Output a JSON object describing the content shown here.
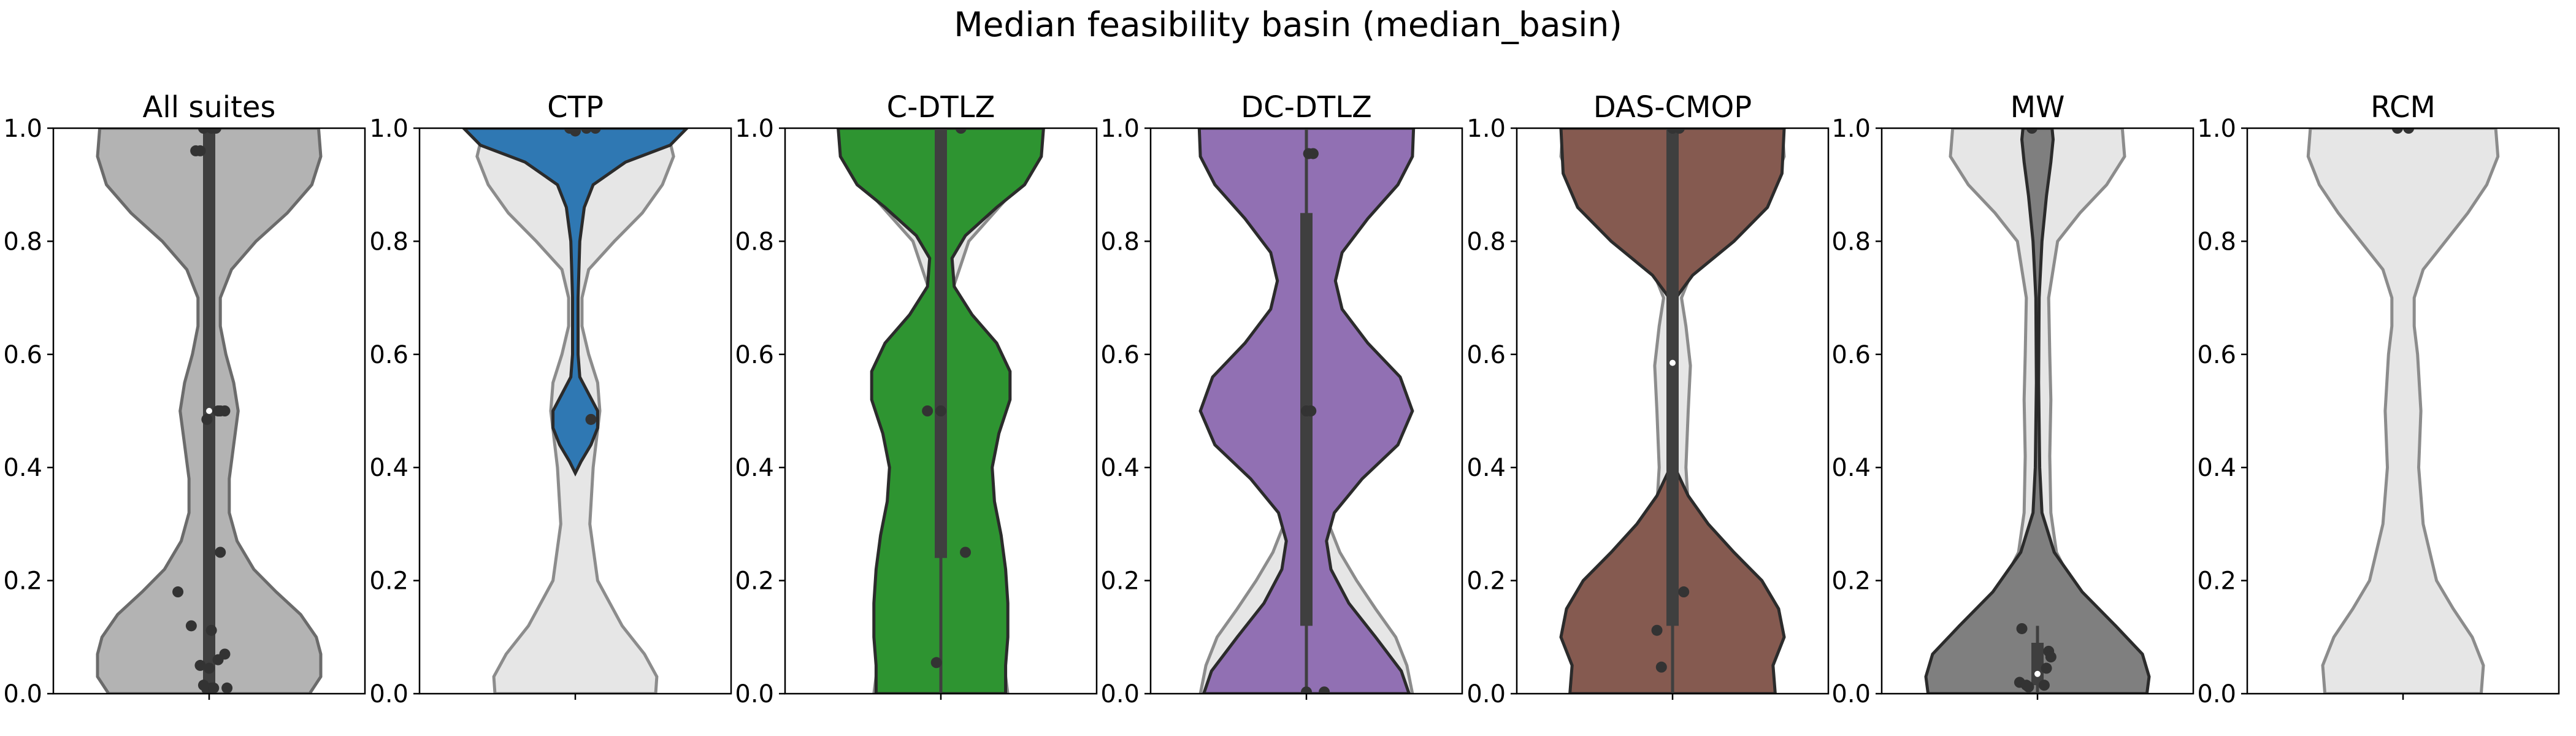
{
  "figure": {
    "title": "Median feasibility basin (median_basin)"
  },
  "style": {
    "ghost_fill": "#e6e6e6",
    "ghost_stroke": "#8c8c8c",
    "box_color": "#3f3f3f",
    "point_color": "#333333",
    "median_color": "#ffffff"
  },
  "y_ticks": [
    "0.0",
    "0.2",
    "0.4",
    "0.6",
    "0.8",
    "1.0"
  ],
  "chart_data": [
    {
      "type": "violin",
      "title": "All suites",
      "ylim": [
        0,
        1
      ],
      "yticks": [
        0,
        0.2,
        0.4,
        0.6,
        0.8,
        1.0
      ],
      "color": "#b3b3b3",
      "stroke": "#6b6b6b",
      "density": [
        [
          0,
          0.9
        ],
        [
          0.03,
          1.0
        ],
        [
          0.07,
          1.0
        ],
        [
          0.1,
          0.96
        ],
        [
          0.14,
          0.82
        ],
        [
          0.18,
          0.6
        ],
        [
          0.22,
          0.4
        ],
        [
          0.27,
          0.25
        ],
        [
          0.32,
          0.18
        ],
        [
          0.38,
          0.18
        ],
        [
          0.44,
          0.22
        ],
        [
          0.5,
          0.26
        ],
        [
          0.55,
          0.22
        ],
        [
          0.6,
          0.15
        ],
        [
          0.65,
          0.1
        ],
        [
          0.7,
          0.1
        ],
        [
          0.75,
          0.2
        ],
        [
          0.8,
          0.42
        ],
        [
          0.85,
          0.7
        ],
        [
          0.9,
          0.92
        ],
        [
          0.95,
          1.0
        ],
        [
          1.0,
          0.98
        ]
      ],
      "box": {
        "q1": 0.0,
        "median": 0.5,
        "q3": 1.0,
        "whisker_low": 0.0,
        "whisker_high": 1.0
      },
      "points": [
        [
          -0.05,
          1.0
        ],
        [
          0.02,
          1.0
        ],
        [
          0.06,
          1.0
        ],
        [
          -0.12,
          0.96
        ],
        [
          -0.08,
          0.96
        ],
        [
          -0.02,
          0.485
        ],
        [
          0.08,
          0.5
        ],
        [
          0.14,
          0.5
        ],
        [
          0.1,
          0.5
        ],
        [
          0.1,
          0.25
        ],
        [
          -0.28,
          0.18
        ],
        [
          -0.16,
          0.12
        ],
        [
          0.02,
          0.112
        ],
        [
          0.14,
          0.07
        ],
        [
          0.08,
          0.06
        ],
        [
          -0.08,
          0.05
        ],
        [
          0.0,
          0.045
        ],
        [
          -0.05,
          0.015
        ],
        [
          0.02,
          0.01
        ],
        [
          0.16,
          0.01
        ],
        [
          -0.02,
          0.008
        ],
        [
          0.04,
          0.01
        ]
      ],
      "ghost": null
    },
    {
      "type": "violin",
      "title": "CTP",
      "ylim": [
        0,
        1
      ],
      "yticks": [
        0,
        0.2,
        0.4,
        0.6,
        0.8,
        1.0
      ],
      "color": "#2f78b3",
      "stroke": "#2b2b2b",
      "density": [
        [
          0.39,
          0.0
        ],
        [
          0.41,
          0.05
        ],
        [
          0.44,
          0.14
        ],
        [
          0.47,
          0.2
        ],
        [
          0.5,
          0.2
        ],
        [
          0.53,
          0.12
        ],
        [
          0.56,
          0.04
        ],
        [
          0.6,
          0.025
        ],
        [
          0.7,
          0.025
        ],
        [
          0.8,
          0.04
        ],
        [
          0.86,
          0.08
        ],
        [
          0.9,
          0.16
        ],
        [
          0.94,
          0.45
        ],
        [
          0.97,
          0.85
        ],
        [
          1.0,
          1.0
        ]
      ],
      "box": {
        "q1": 1.0,
        "median": 1.0,
        "q3": 1.0,
        "whisker_low": 1.0,
        "whisker_high": 1.0
      },
      "points": [
        [
          -0.05,
          1.0
        ],
        [
          0.1,
          1.0
        ],
        [
          0.18,
          1.0
        ],
        [
          0.0,
          0.995
        ],
        [
          0.14,
          0.485
        ]
      ],
      "ghost": [
        [
          0,
          0.72
        ],
        [
          0.03,
          0.73
        ],
        [
          0.07,
          0.62
        ],
        [
          0.12,
          0.42
        ],
        [
          0.2,
          0.2
        ],
        [
          0.3,
          0.13
        ],
        [
          0.4,
          0.16
        ],
        [
          0.5,
          0.22
        ],
        [
          0.55,
          0.2
        ],
        [
          0.6,
          0.12
        ],
        [
          0.65,
          0.06
        ],
        [
          0.7,
          0.06
        ],
        [
          0.75,
          0.12
        ],
        [
          0.8,
          0.35
        ],
        [
          0.85,
          0.6
        ],
        [
          0.9,
          0.78
        ],
        [
          0.95,
          0.88
        ],
        [
          1.0,
          0.82
        ]
      ]
    },
    {
      "type": "violin",
      "title": "C-DTLZ",
      "ylim": [
        0,
        1
      ],
      "yticks": [
        0,
        0.2,
        0.4,
        0.6,
        0.8,
        1.0
      ],
      "color": "#2e9431",
      "stroke": "#2b2b2b",
      "density": [
        [
          0,
          0.58
        ],
        [
          0.05,
          0.58
        ],
        [
          0.1,
          0.6
        ],
        [
          0.16,
          0.6
        ],
        [
          0.22,
          0.58
        ],
        [
          0.28,
          0.54
        ],
        [
          0.34,
          0.48
        ],
        [
          0.4,
          0.46
        ],
        [
          0.46,
          0.52
        ],
        [
          0.52,
          0.62
        ],
        [
          0.57,
          0.62
        ],
        [
          0.62,
          0.5
        ],
        [
          0.67,
          0.28
        ],
        [
          0.72,
          0.12
        ],
        [
          0.77,
          0.1
        ],
        [
          0.81,
          0.22
        ],
        [
          0.86,
          0.5
        ],
        [
          0.9,
          0.75
        ],
        [
          0.95,
          0.9
        ],
        [
          1.0,
          0.92
        ]
      ],
      "box": {
        "q1": 0.24,
        "median": 0.5,
        "q3": 1.0,
        "whisker_low": 0.0,
        "whisker_high": 1.0
      },
      "points": [
        [
          -0.12,
          0.5
        ],
        [
          0.0,
          0.5
        ],
        [
          0.18,
          1.0
        ],
        [
          0.22,
          0.25
        ],
        [
          -0.04,
          0.055
        ]
      ],
      "ghost": [
        [
          0,
          0.6
        ],
        [
          0.03,
          0.58
        ],
        [
          0.06,
          0.45
        ],
        [
          0.1,
          0.3
        ],
        [
          0.2,
          0.14
        ],
        [
          0.3,
          0.12
        ],
        [
          0.4,
          0.14
        ],
        [
          0.5,
          0.15
        ],
        [
          0.6,
          0.12
        ],
        [
          0.7,
          0.08
        ],
        [
          0.8,
          0.25
        ],
        [
          0.9,
          0.7
        ],
        [
          1.0,
          0.92
        ]
      ]
    },
    {
      "type": "violin",
      "title": "DC-DTLZ",
      "ylim": [
        0,
        1
      ],
      "yticks": [
        0,
        0.2,
        0.4,
        0.6,
        0.8,
        1.0
      ],
      "color": "#9170b3",
      "stroke": "#2b2b2b",
      "density": [
        [
          0,
          0.92
        ],
        [
          0.04,
          0.85
        ],
        [
          0.1,
          0.62
        ],
        [
          0.16,
          0.38
        ],
        [
          0.22,
          0.22
        ],
        [
          0.27,
          0.18
        ],
        [
          0.32,
          0.25
        ],
        [
          0.38,
          0.5
        ],
        [
          0.44,
          0.82
        ],
        [
          0.5,
          0.95
        ],
        [
          0.56,
          0.84
        ],
        [
          0.62,
          0.55
        ],
        [
          0.68,
          0.32
        ],
        [
          0.73,
          0.26
        ],
        [
          0.78,
          0.32
        ],
        [
          0.84,
          0.55
        ],
        [
          0.9,
          0.82
        ],
        [
          0.95,
          0.95
        ],
        [
          1.0,
          0.96
        ]
      ],
      "box": {
        "q1": 0.12,
        "median": 0.5,
        "q3": 0.85,
        "whisker_low": 0.0,
        "whisker_high": 1.0
      },
      "points": [
        [
          0.0,
          0.5
        ],
        [
          0.04,
          0.5
        ],
        [
          0.02,
          0.955
        ],
        [
          0.06,
          0.955
        ],
        [
          0.0,
          0.003
        ],
        [
          0.16,
          0.003
        ]
      ],
      "ghost": [
        [
          0,
          0.95
        ],
        [
          0.05,
          0.9
        ],
        [
          0.1,
          0.8
        ],
        [
          0.15,
          0.62
        ],
        [
          0.2,
          0.45
        ],
        [
          0.25,
          0.3
        ],
        [
          0.3,
          0.2
        ],
        [
          0.35,
          0.12
        ],
        [
          0.4,
          0.06
        ],
        [
          0.5,
          0.04
        ],
        [
          0.6,
          0.04
        ]
      ]
    },
    {
      "type": "violin",
      "title": "DAS-CMOP",
      "ylim": [
        0,
        1
      ],
      "yticks": [
        0,
        0.2,
        0.4,
        0.6,
        0.8,
        1.0
      ],
      "color": "#855a50",
      "stroke": "#2b2b2b",
      "density": [
        [
          0,
          0.92
        ],
        [
          0.05,
          0.9
        ],
        [
          0.1,
          1.0
        ],
        [
          0.15,
          0.95
        ],
        [
          0.2,
          0.8
        ],
        [
          0.25,
          0.55
        ],
        [
          0.3,
          0.32
        ],
        [
          0.35,
          0.14
        ],
        [
          0.4,
          0.02
        ],
        [
          0.45,
          0.0
        ],
        [
          0.68,
          0.0
        ],
        [
          0.7,
          0.03
        ],
        [
          0.74,
          0.18
        ],
        [
          0.8,
          0.55
        ],
        [
          0.86,
          0.85
        ],
        [
          0.92,
          0.98
        ],
        [
          1.0,
          1.0
        ]
      ],
      "box": {
        "q1": 0.12,
        "median": 0.585,
        "q3": 1.0,
        "whisker_low": 0.0,
        "whisker_high": 1.0
      },
      "points": [
        [
          -0.14,
          0.112
        ],
        [
          -0.1,
          0.047
        ],
        [
          0.1,
          0.18
        ],
        [
          0.0,
          1.0
        ],
        [
          0.06,
          1.0
        ]
      ],
      "ghost": [
        [
          0,
          0.7
        ],
        [
          0.05,
          0.68
        ],
        [
          0.1,
          0.65
        ],
        [
          0.15,
          0.55
        ],
        [
          0.2,
          0.4
        ],
        [
          0.25,
          0.25
        ],
        [
          0.3,
          0.15
        ],
        [
          0.4,
          0.12
        ],
        [
          0.5,
          0.14
        ],
        [
          0.58,
          0.16
        ],
        [
          0.65,
          0.12
        ],
        [
          0.7,
          0.08
        ],
        [
          0.75,
          0.18
        ],
        [
          0.8,
          0.45
        ],
        [
          0.85,
          0.72
        ],
        [
          0.9,
          0.9
        ],
        [
          0.95,
          1.0
        ],
        [
          1.0,
          0.98
        ]
      ]
    },
    {
      "type": "violin",
      "title": "MW",
      "ylim": [
        0,
        1
      ],
      "yticks": [
        0,
        0.2,
        0.4,
        0.6,
        0.8,
        1.0
      ],
      "color": "#7f7f7f",
      "stroke": "#2b2b2b",
      "density": [
        [
          0,
          0.98
        ],
        [
          0.03,
          1.0
        ],
        [
          0.07,
          0.94
        ],
        [
          0.12,
          0.7
        ],
        [
          0.18,
          0.4
        ],
        [
          0.25,
          0.15
        ],
        [
          0.32,
          0.04
        ],
        [
          0.4,
          0.02
        ],
        [
          0.55,
          0.01
        ],
        [
          0.7,
          0.015
        ],
        [
          0.8,
          0.04
        ],
        [
          0.88,
          0.08
        ],
        [
          0.94,
          0.12
        ],
        [
          0.98,
          0.14
        ],
        [
          1.0,
          0.13
        ]
      ],
      "box": {
        "q1": 0.015,
        "median": 0.035,
        "q3": 0.09,
        "whisker_low": 0.0,
        "whisker_high": 0.12
      },
      "points": [
        [
          -0.16,
          0.02
        ],
        [
          -0.1,
          0.015
        ],
        [
          -0.08,
          0.012
        ],
        [
          -0.14,
          0.115
        ],
        [
          0.1,
          0.075
        ],
        [
          0.12,
          0.065
        ],
        [
          0.08,
          0.045
        ],
        [
          0.06,
          0.015
        ],
        [
          -0.05,
          1.0
        ]
      ],
      "ghost": [
        [
          0,
          0.58
        ],
        [
          0.05,
          0.62
        ],
        [
          0.1,
          0.58
        ],
        [
          0.15,
          0.45
        ],
        [
          0.2,
          0.3
        ],
        [
          0.25,
          0.17
        ],
        [
          0.32,
          0.12
        ],
        [
          0.42,
          0.11
        ],
        [
          0.52,
          0.12
        ],
        [
          0.6,
          0.11
        ],
        [
          0.7,
          0.1
        ],
        [
          0.8,
          0.18
        ],
        [
          0.85,
          0.38
        ],
        [
          0.9,
          0.62
        ],
        [
          0.95,
          0.78
        ],
        [
          1.0,
          0.76
        ]
      ]
    },
    {
      "type": "violin",
      "title": "RCM",
      "ylim": [
        0,
        1
      ],
      "yticks": [
        0,
        0.2,
        0.4,
        0.6,
        0.8,
        1.0
      ],
      "color": "#e6e6e6",
      "stroke": "#8c8c8c",
      "density": null,
      "box": null,
      "points": [
        [
          -0.05,
          1.0
        ],
        [
          0.05,
          1.0
        ]
      ],
      "ghost": [
        [
          0,
          0.7
        ],
        [
          0.05,
          0.72
        ],
        [
          0.1,
          0.62
        ],
        [
          0.15,
          0.45
        ],
        [
          0.2,
          0.3
        ],
        [
          0.3,
          0.18
        ],
        [
          0.4,
          0.14
        ],
        [
          0.5,
          0.16
        ],
        [
          0.6,
          0.13
        ],
        [
          0.65,
          0.1
        ],
        [
          0.7,
          0.1
        ],
        [
          0.75,
          0.18
        ],
        [
          0.8,
          0.38
        ],
        [
          0.85,
          0.58
        ],
        [
          0.9,
          0.75
        ],
        [
          0.95,
          0.85
        ],
        [
          1.0,
          0.83
        ]
      ]
    }
  ]
}
